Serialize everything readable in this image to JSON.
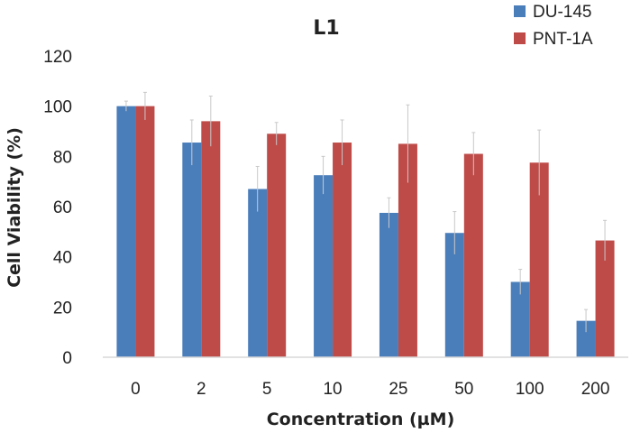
{
  "chart_data": {
    "type": "bar",
    "title": "L1",
    "xlabel": "Concentration (µM)",
    "ylabel": "Cell Viability (%)",
    "categories": [
      "0",
      "2",
      "5",
      "10",
      "25",
      "50",
      "100",
      "200"
    ],
    "ylim": [
      0,
      120
    ],
    "yticks": [
      "0",
      "20",
      "40",
      "60",
      "80",
      "100",
      "120"
    ],
    "grid": false,
    "legend_position": "top-right",
    "series": [
      {
        "name": "DU-145",
        "color": "#4a7ebb",
        "values": [
          100,
          85.5,
          67,
          72.5,
          57.5,
          49.5,
          30,
          14.5
        ],
        "errors": [
          2,
          9,
          9,
          7.5,
          6,
          8.5,
          5,
          4.5
        ]
      },
      {
        "name": "PNT-1A",
        "color": "#be4b48",
        "values": [
          100,
          94,
          89,
          85.5,
          85,
          81,
          77.5,
          46.5
        ],
        "errors": [
          5.5,
          10,
          4.5,
          9,
          15.5,
          8.5,
          13,
          8
        ]
      }
    ]
  }
}
